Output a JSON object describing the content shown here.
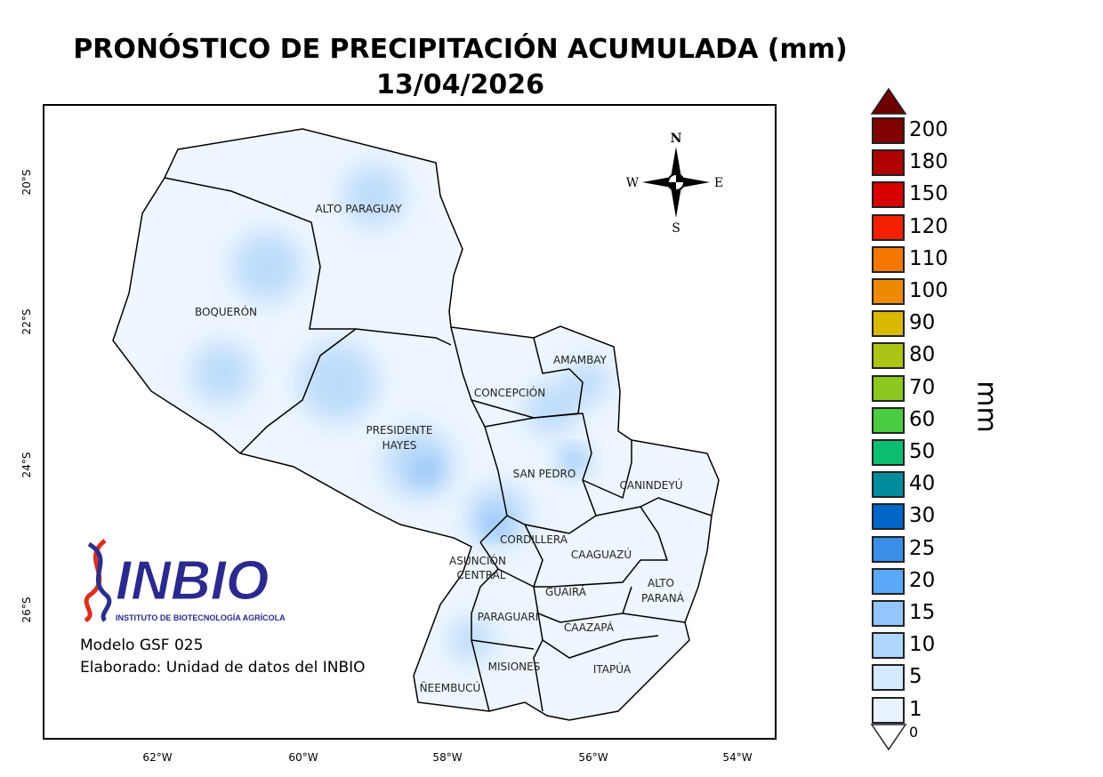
{
  "title": "PRONÓSTICO DE PRECIPITACIÓN ACUMULADA (mm)",
  "date": "13/04/2026",
  "lon_ticks": [
    "62°W",
    "60°W",
    "58°W",
    "56°W",
    "54°W"
  ],
  "lat_ticks": [
    "20°S",
    "22°S",
    "24°S",
    "26°S"
  ],
  "compass": {
    "n": "N",
    "s": "S",
    "e": "E",
    "w": "W"
  },
  "departments": [
    "ALTO PARAGUAY",
    "BOQUERÓN",
    "PRESIDENTE",
    "HAYES",
    "CONCEPCIÓN",
    "AMAMBAY",
    "SAN PEDRO",
    "CANINDEYÚ",
    "CORDILLERA",
    "ASUNCIÓN",
    "CENTRAL",
    "CAAGUAZÚ",
    "GUAIRÁ",
    "ALTO",
    "PARANÁ",
    "PARAGUARÍ",
    "CAAZAPÁ",
    "MISIONES",
    "ITAPÚA",
    "ÑEEMBUCÚ"
  ],
  "legend": {
    "unit": "mm",
    "over_color": "#6e0000",
    "under_label": "0",
    "items": [
      {
        "label": "200",
        "color": "#800000"
      },
      {
        "label": "180",
        "color": "#b00000"
      },
      {
        "label": "150",
        "color": "#d80000"
      },
      {
        "label": "120",
        "color": "#f42000"
      },
      {
        "label": "110",
        "color": "#f47800"
      },
      {
        "label": "100",
        "color": "#ee8a00"
      },
      {
        "label": "90",
        "color": "#d8b800"
      },
      {
        "label": "80",
        "color": "#aec414"
      },
      {
        "label": "70",
        "color": "#8cc820"
      },
      {
        "label": "60",
        "color": "#4ccc40"
      },
      {
        "label": "50",
        "color": "#0cbc70"
      },
      {
        "label": "40",
        "color": "#008c9c"
      },
      {
        "label": "30",
        "color": "#0066c8"
      },
      {
        "label": "25",
        "color": "#3a8ee6"
      },
      {
        "label": "20",
        "color": "#5aa8f8"
      },
      {
        "label": "15",
        "color": "#92c6fc"
      },
      {
        "label": "10",
        "color": "#aed6fe"
      },
      {
        "label": "5",
        "color": "#d4eaff"
      },
      {
        "label": "1",
        "color": "#e8f3ff"
      }
    ]
  },
  "logo": {
    "name": "INBIO",
    "subtitle": "INSTITUTO DE BIOTECNOLOGÍA AGRÍCOLA"
  },
  "model": "Modelo GSF 025",
  "credit": "Elaborado: Unidad de datos del INBIO"
}
